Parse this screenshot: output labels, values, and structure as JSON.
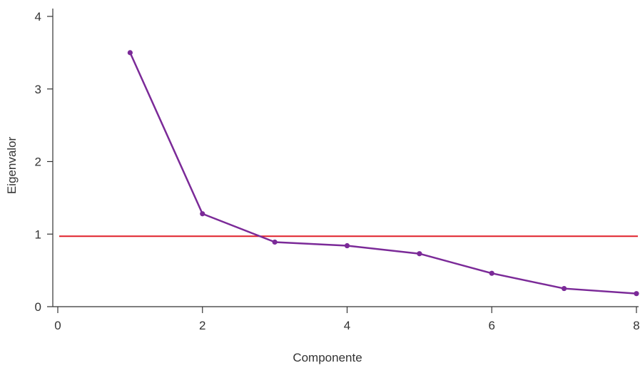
{
  "chart_data": {
    "type": "line",
    "xlabel": "Componente",
    "ylabel": "Eigenvalor",
    "xlim": [
      0,
      8
    ],
    "ylim": [
      0,
      4
    ],
    "x_ticks": [
      0,
      2,
      4,
      6,
      8
    ],
    "y_ticks": [
      0,
      1,
      2,
      3,
      4
    ],
    "grid": false,
    "series": [
      {
        "x": [
          1,
          2,
          3,
          4,
          5,
          6,
          7,
          8
        ],
        "values": [
          3.5,
          1.28,
          0.89,
          0.84,
          0.73,
          0.46,
          0.25,
          0.18
        ],
        "color": "#7b2a98"
      }
    ],
    "reference_line": {
      "y": 0.97,
      "color": "#e0202a"
    }
  }
}
